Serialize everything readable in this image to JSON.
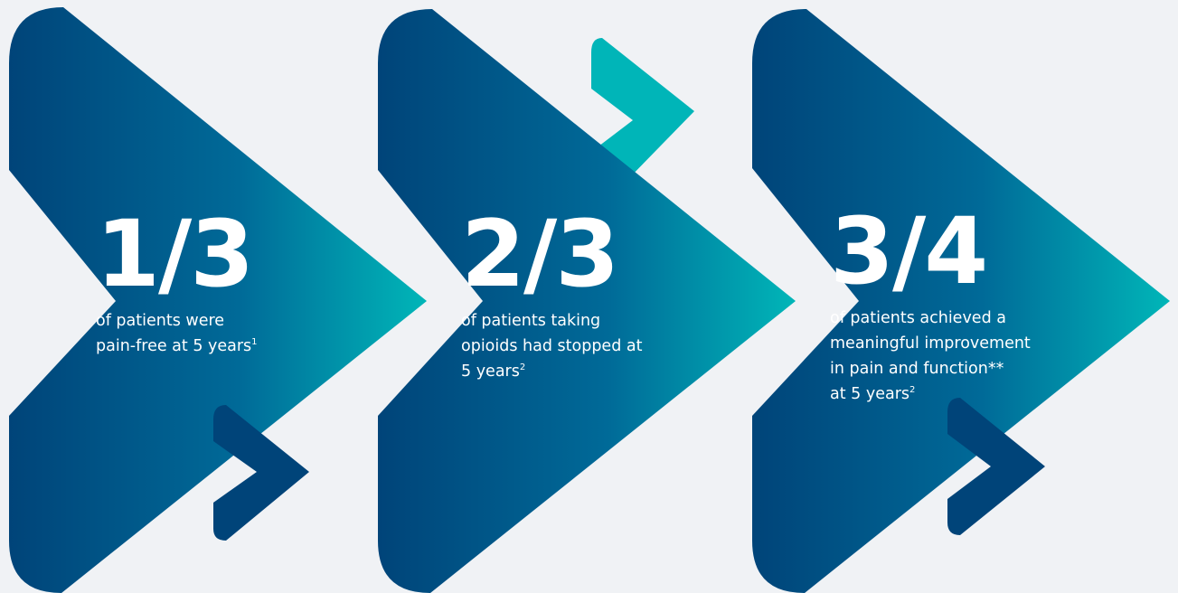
{
  "stats": [
    {
      "fraction": "1/3",
      "lines": [
        "of patients were",
        "pain-free at 5 years"
      ],
      "footnote": "1"
    },
    {
      "fraction": "2/3",
      "lines": [
        "of patients taking",
        "opioids had stopped at",
        "5 years"
      ],
      "footnote": "2"
    },
    {
      "fraction": "3/4",
      "lines": [
        "of patients achieved a",
        "meaningful improvement",
        "in pain and function**",
        "at 5 years"
      ],
      "footnote": "2"
    }
  ],
  "colors": {
    "background": "#f0f2f5",
    "navy": "#004479",
    "deep_blue": "#0a4a82",
    "teal": "#00b5b8"
  }
}
